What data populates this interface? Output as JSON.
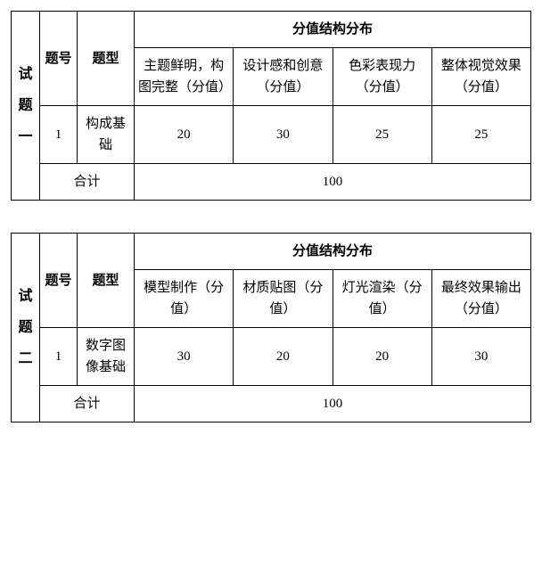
{
  "tables": [
    {
      "side_label": "试题一",
      "header_group": "分值结构分布",
      "col_num": "题号",
      "col_type": "题型",
      "criteria": [
        "主题鲜明，构图完整（分值）",
        "设计感和创意（分值）",
        "色彩表现力（分值）",
        "整体视觉效果（分值）"
      ],
      "row": {
        "num": "1",
        "type": "构成基础",
        "scores": [
          "20",
          "30",
          "25",
          "25"
        ]
      },
      "total_label": "合计",
      "total_value": "100"
    },
    {
      "side_label": "试题二",
      "header_group": "分值结构分布",
      "col_num": "题号",
      "col_type": "题型",
      "criteria": [
        "模型制作（分值）",
        "材质贴图（分值）",
        "灯光渲染（分值）",
        "最终效果输出（分值）"
      ],
      "row": {
        "num": "1",
        "type": "数字图像基础",
        "scores": [
          "30",
          "20",
          "20",
          "30"
        ]
      },
      "total_label": "合计",
      "total_value": "100"
    }
  ]
}
